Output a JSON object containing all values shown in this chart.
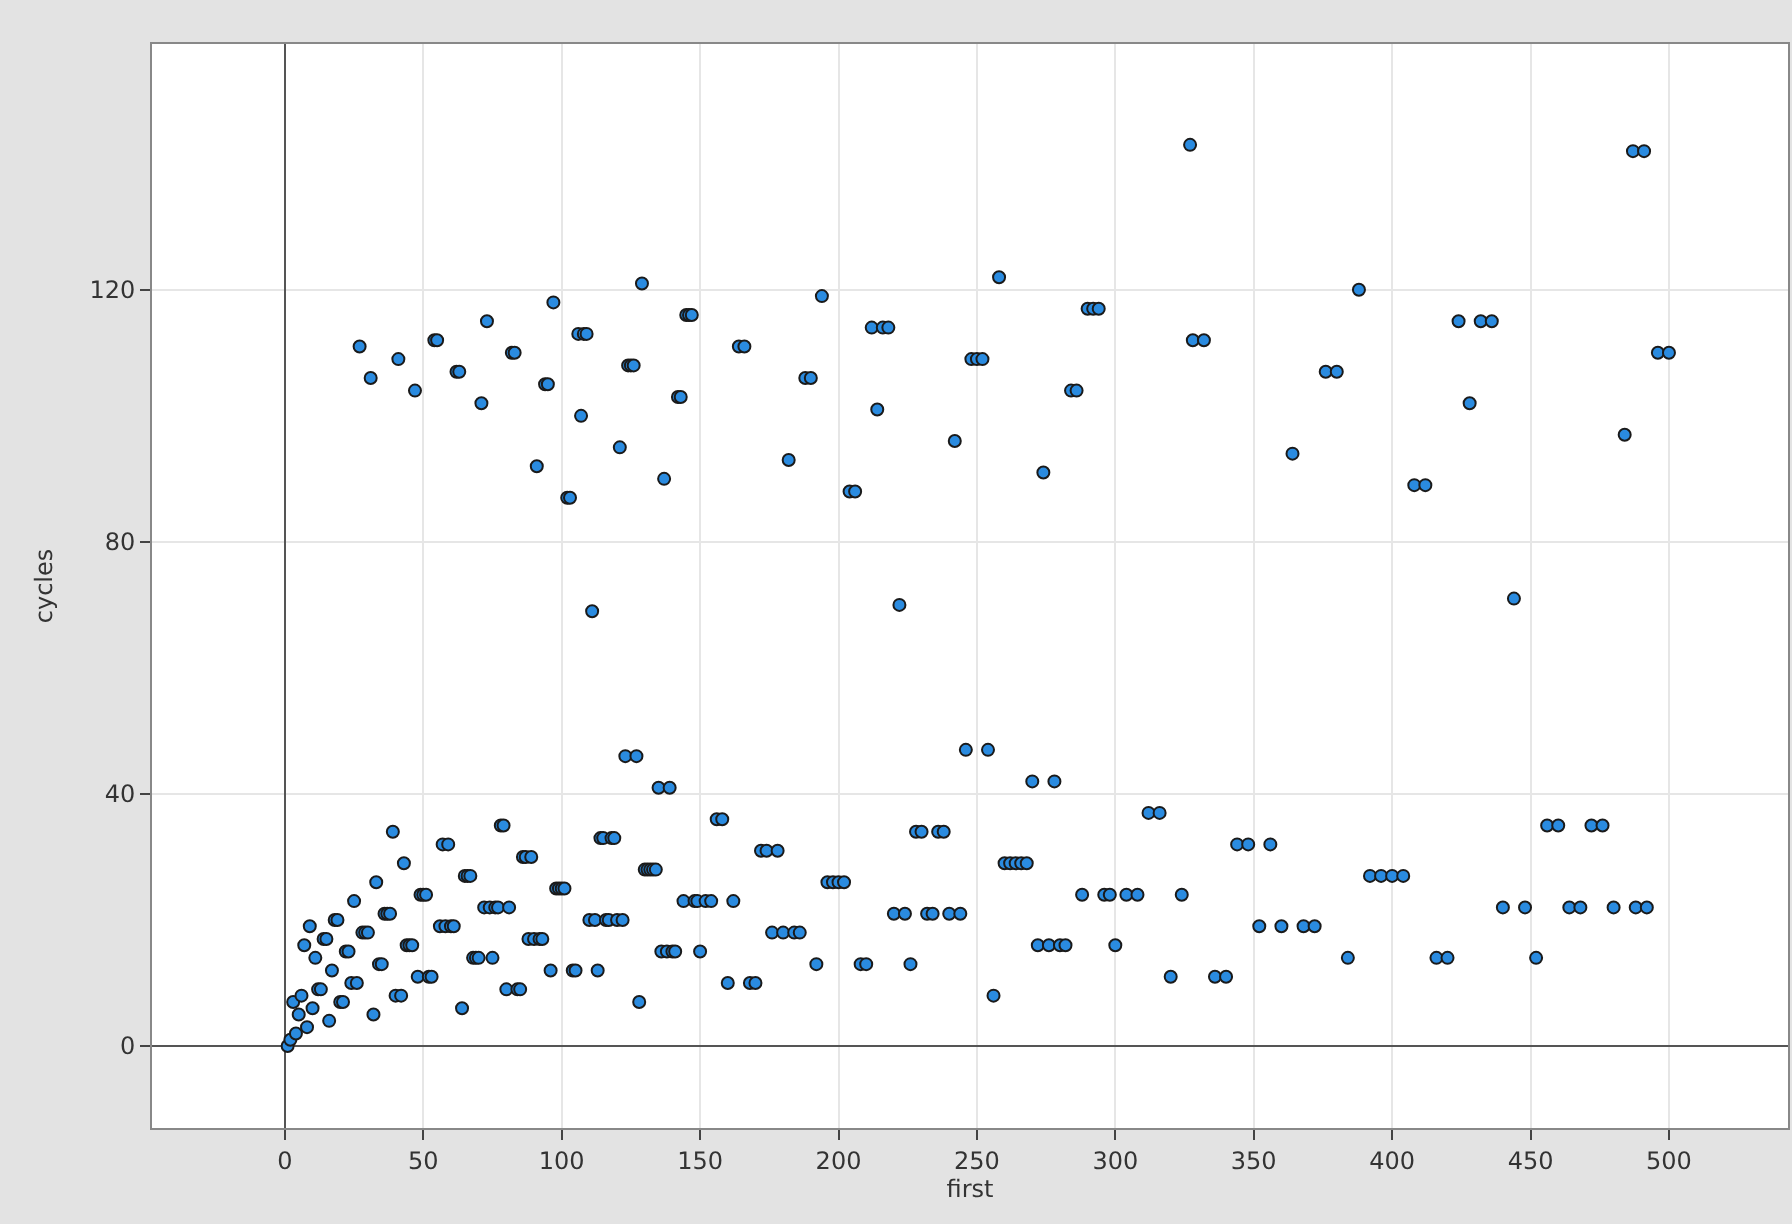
{
  "chart_data": {
    "type": "scatter",
    "xlabel": "first",
    "ylabel": "cycles",
    "xlim": [
      -48,
      543
    ],
    "ylim": [
      -13,
      159
    ],
    "xticks": [
      0,
      50,
      100,
      150,
      200,
      250,
      300,
      350,
      400,
      450,
      500
    ],
    "yticks": [
      0,
      40,
      80,
      120
    ],
    "grid": true,
    "marker": "circle",
    "series": [
      {
        "color": "#2a8be0",
        "x": [
          1,
          2,
          3,
          4,
          5,
          6,
          7,
          8,
          9,
          10,
          11,
          12,
          13,
          14,
          15,
          16,
          17,
          18,
          19,
          20,
          21,
          22,
          23,
          24,
          25,
          26,
          27,
          28,
          29,
          30,
          31,
          32,
          33,
          34,
          35,
          36,
          37,
          38,
          39,
          40,
          41,
          42,
          43,
          44,
          45,
          46,
          47,
          48,
          49,
          50,
          51,
          52,
          53,
          54,
          55,
          56,
          57,
          58,
          59,
          60,
          61,
          62,
          63,
          64,
          65,
          66,
          67,
          68,
          69,
          70,
          71,
          72,
          73,
          74,
          75,
          76,
          77,
          78,
          79,
          80,
          81,
          82,
          83,
          84,
          85,
          86,
          87,
          88,
          89,
          90,
          91,
          92,
          93,
          94,
          95,
          96,
          97,
          98,
          99,
          100,
          101,
          102,
          103,
          104,
          105,
          106,
          107,
          108,
          109,
          110,
          111,
          112,
          113,
          114,
          115,
          116,
          117,
          118,
          119,
          120,
          121,
          122,
          123,
          124,
          125,
          126,
          127,
          128,
          129,
          130,
          131,
          132,
          133,
          134,
          135,
          136,
          137,
          138,
          139,
          140,
          141,
          142,
          143,
          144,
          145,
          146,
          147,
          148,
          149,
          150,
          152,
          154,
          156,
          158,
          160,
          162,
          164,
          166,
          168,
          170,
          172,
          174,
          176,
          178,
          180,
          182,
          184,
          186,
          188,
          190,
          192,
          194,
          196,
          198,
          200,
          202,
          204,
          206,
          208,
          210,
          212,
          214,
          216,
          218,
          220,
          222,
          224,
          226,
          228,
          230,
          232,
          234,
          236,
          238,
          240,
          242,
          244,
          246,
          248,
          250,
          252,
          254,
          256,
          258,
          260,
          262,
          264,
          266,
          268,
          270,
          272,
          274,
          276,
          278,
          280,
          282,
          284,
          286,
          288,
          290,
          292,
          294,
          296,
          298,
          300,
          304,
          308,
          312,
          316,
          320,
          324,
          327,
          328,
          332,
          336,
          340,
          344,
          348,
          352,
          356,
          360,
          364,
          368,
          372,
          376,
          380,
          384,
          388,
          392,
          396,
          400,
          404,
          408,
          412,
          416,
          420,
          424,
          428,
          432,
          436,
          440,
          444,
          448,
          452,
          456,
          460,
          464,
          468,
          472,
          476,
          480,
          484,
          487,
          488,
          491,
          492,
          496,
          500
        ],
        "values": [
          0,
          1,
          7,
          2,
          5,
          8,
          16,
          3,
          19,
          6,
          14,
          9,
          9,
          17,
          17,
          4,
          12,
          20,
          20,
          7,
          7,
          15,
          15,
          10,
          23,
          10,
          111,
          18,
          18,
          18,
          106,
          5,
          26,
          13,
          13,
          21,
          21,
          21,
          34,
          8,
          109,
          8,
          29,
          16,
          16,
          16,
          104,
          11,
          24,
          24,
          24,
          11,
          11,
          112,
          112,
          19,
          32,
          19,
          32,
          19,
          19,
          107,
          107,
          6,
          27,
          27,
          27,
          14,
          14,
          14,
          102,
          22,
          115,
          22,
          14,
          22,
          22,
          35,
          35,
          9,
          22,
          110,
          110,
          9,
          9,
          30,
          30,
          17,
          30,
          17,
          92,
          17,
          17,
          105,
          105,
          12,
          118,
          25,
          25,
          25,
          25,
          87,
          87,
          12,
          12,
          113,
          100,
          113,
          113,
          20,
          69,
          20,
          12,
          33,
          33,
          20,
          20,
          33,
          33,
          20,
          95,
          20,
          46,
          108,
          108,
          108,
          46,
          7,
          121,
          28,
          28,
          28,
          28,
          28,
          41,
          15,
          90,
          15,
          41,
          15,
          15,
          103,
          103,
          23,
          116,
          116,
          116,
          23,
          23,
          15,
          23,
          23,
          36,
          36,
          10,
          23,
          111,
          111,
          10,
          10,
          31,
          31,
          18,
          31,
          18,
          93,
          18,
          18,
          106,
          106,
          13,
          119,
          26,
          26,
          26,
          26,
          88,
          88,
          13,
          13,
          114,
          101,
          114,
          114,
          21,
          70,
          21,
          13,
          34,
          34,
          21,
          21,
          34,
          34,
          21,
          96,
          21,
          47,
          109,
          109,
          109,
          47,
          8,
          122,
          29,
          29,
          29,
          29,
          29,
          42,
          16,
          91,
          16,
          42,
          16,
          16,
          104,
          104,
          24,
          117,
          117,
          117,
          24,
          24,
          16,
          24,
          24,
          37,
          37,
          11,
          24,
          143,
          112,
          112,
          11,
          11,
          32,
          32,
          19,
          32,
          19,
          94,
          19,
          19,
          107,
          107,
          14,
          120,
          27,
          27,
          27,
          27,
          89,
          89,
          14,
          14,
          115,
          102,
          115,
          115,
          22,
          71,
          22,
          14,
          35,
          35,
          22,
          22,
          35,
          35,
          22,
          97,
          142,
          22,
          142,
          22,
          110,
          110
        ]
      }
    ]
  }
}
